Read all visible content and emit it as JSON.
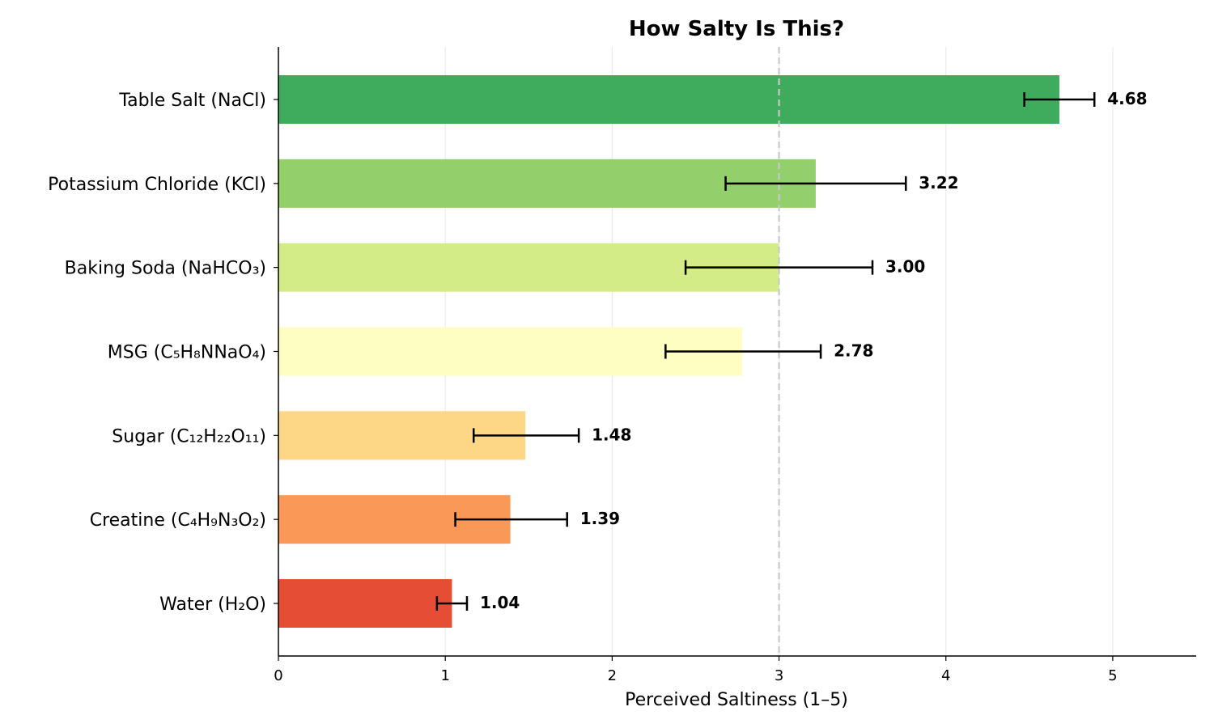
{
  "chart_data": {
    "type": "bar",
    "orientation": "horizontal",
    "title": "How Salty Is This?",
    "xlabel": "Perceived Saltiness (1–5)",
    "ylabel": "",
    "xlim": [
      0,
      5.5
    ],
    "xticks": [
      0,
      1,
      2,
      3,
      4,
      5
    ],
    "reference_line": 3,
    "grid": "vertical",
    "categories": [
      "Table Salt (NaCl)",
      "Potassium Chloride (KCl)",
      "Baking Soda (NaHCO₃)",
      "MSG (C₅H₈NNaO₄)",
      "Sugar (C₁₂H₂₂O₁₁)",
      "Creatine (C₄H₉N₃O₂)",
      "Water (H₂O)"
    ],
    "values": [
      4.68,
      3.22,
      3.0,
      2.78,
      1.48,
      1.39,
      1.04
    ],
    "value_labels": [
      "4.68",
      "3.22",
      "3.00",
      "2.78",
      "1.48",
      "1.39",
      "1.04"
    ],
    "error_low": [
      4.47,
      2.68,
      2.44,
      2.32,
      1.17,
      1.06,
      0.95
    ],
    "error_high": [
      4.89,
      3.76,
      3.56,
      3.25,
      1.8,
      1.73,
      1.13
    ],
    "colors": [
      "#3fab5c",
      "#93cf6b",
      "#d4ec88",
      "#fefec2",
      "#fdd686",
      "#f99857",
      "#e54e35"
    ]
  }
}
